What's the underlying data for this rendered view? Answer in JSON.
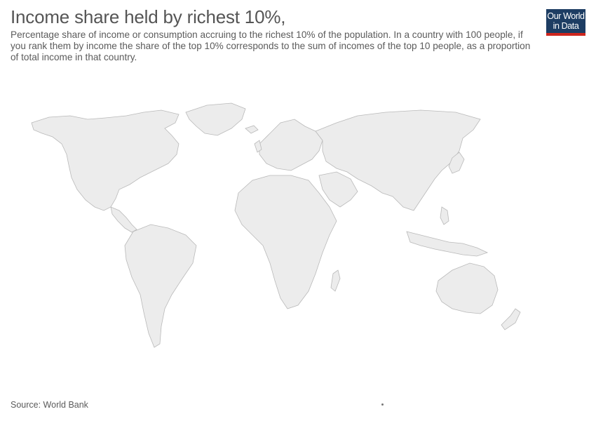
{
  "header": {
    "title": "Income share held by richest 10%,",
    "subtitle": "Percentage share of income or consumption accruing to the richest 10% of the population. In a country with 100 people, if you rank them by income the share of the top 10% corresponds to the sum of incomes of the top 10 people, as a proportion of total income in that country."
  },
  "logo": {
    "line1": "Our World",
    "line2": "in Data"
  },
  "footer": {
    "source": "Source: World Bank"
  },
  "map": {
    "fill_color": "#ececec",
    "border_color": "#b9b9b9"
  },
  "colors": {
    "logo_bg": "#1d3d63",
    "logo_accent": "#ce261e",
    "text": "#555555"
  }
}
